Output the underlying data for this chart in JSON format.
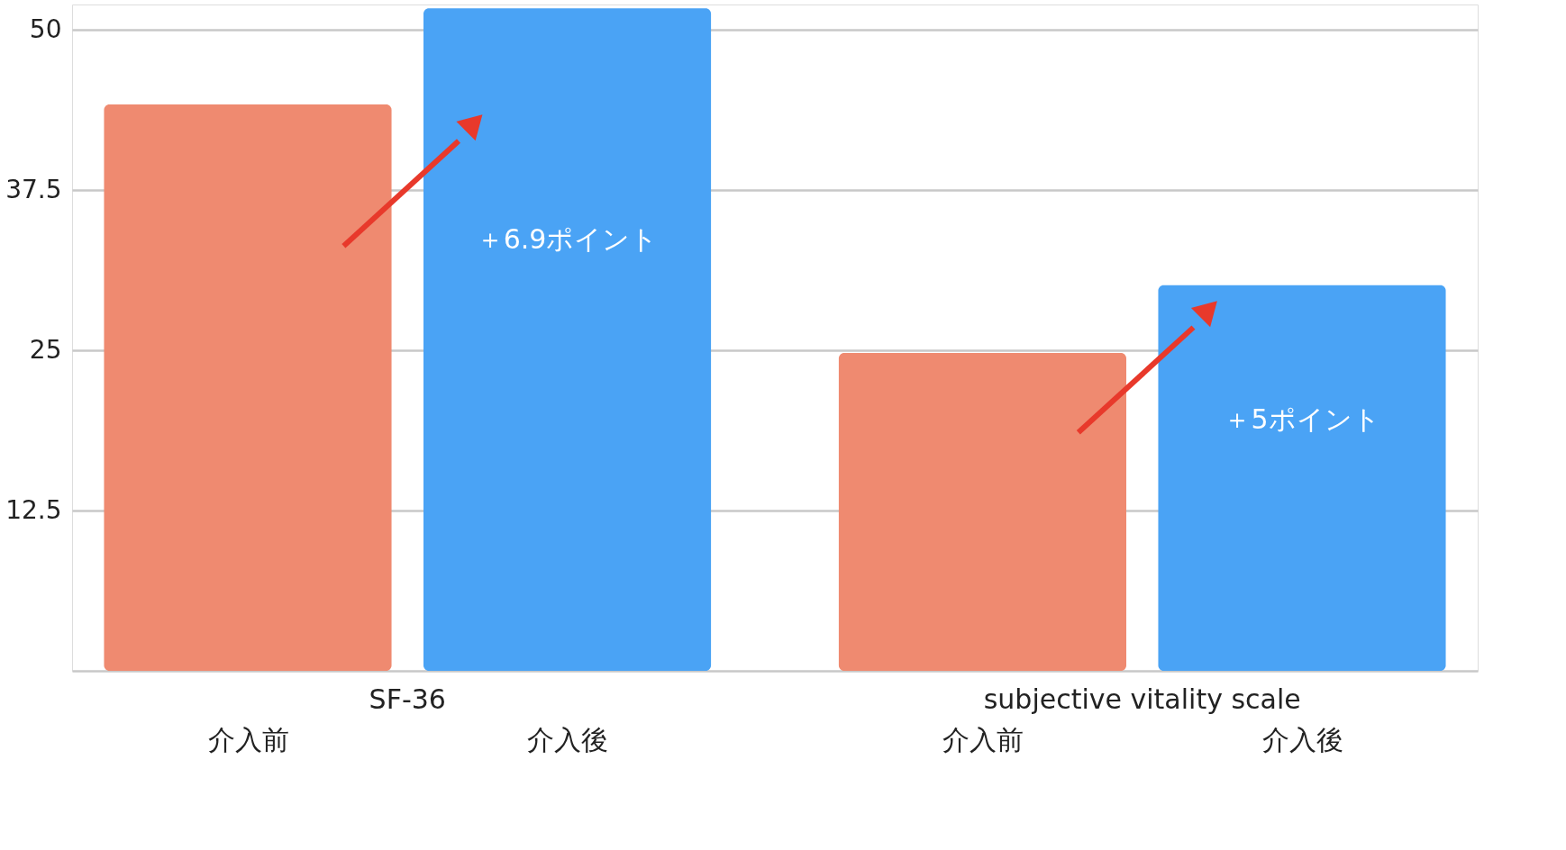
{
  "chart_data": {
    "type": "bar",
    "categories": [
      "介入前",
      "介入後",
      "介入前",
      "介入後"
    ],
    "values": [
      44.2,
      51.7,
      24.8,
      30.1
    ],
    "colors": [
      "#ef8a70",
      "#4aa3f5",
      "#ef8a70",
      "#4aa3f5"
    ],
    "ylim": [
      0,
      52
    ],
    "yticks": [
      {
        "value": 0,
        "label": null
      },
      12.5,
      25,
      37.5,
      50
    ],
    "grid": "y",
    "annotations": [
      "SF-36",
      "subjective vitality scale",
      "＋6.9ポイント",
      "＋5ポイント"
    ]
  }
}
